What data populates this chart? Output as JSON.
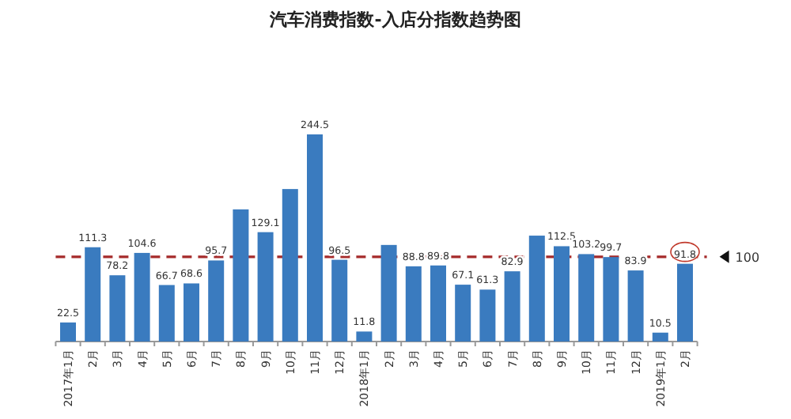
{
  "chart_data": {
    "type": "bar",
    "title": "汽车消费指数-入店分指数趋势图",
    "categories": [
      "2017年1月",
      "2月",
      "3月",
      "4月",
      "5月",
      "6月",
      "7月",
      "8月",
      "9月",
      "10月",
      "11月",
      "12月",
      "2018年1月",
      "2月",
      "3月",
      "4月",
      "5月",
      "6月",
      "7月",
      "8月",
      "9月",
      "10月",
      "11月",
      "12月",
      "2019年1月",
      "2月"
    ],
    "values": [
      22.5,
      111.3,
      78.2,
      104.6,
      66.7,
      68.6,
      95.7,
      156,
      129.1,
      180,
      244.5,
      96.5,
      11.8,
      114,
      88.8,
      89.8,
      67.1,
      61.3,
      82.9,
      125,
      112.5,
      103.2,
      99.7,
      83.9,
      10.5,
      91.8
    ],
    "value_labels": [
      "22.5",
      "111.3",
      "78.2",
      "104.6",
      "66.7",
      "68.6",
      "95.7",
      null,
      "129.1",
      null,
      "244.5",
      "96.5",
      "11.8",
      null,
      "88.8",
      "89.8",
      "67.1",
      "61.3",
      "82.9",
      null,
      "112.5",
      "103.2",
      "99.7",
      "83.9",
      "10.5",
      "91.8"
    ],
    "color": "#3a7bbf",
    "ref_lines": [
      {
        "axis": "y",
        "value": 100,
        "label": "100",
        "color": "#a52a2a",
        "line_style": "dashed"
      }
    ]
  }
}
